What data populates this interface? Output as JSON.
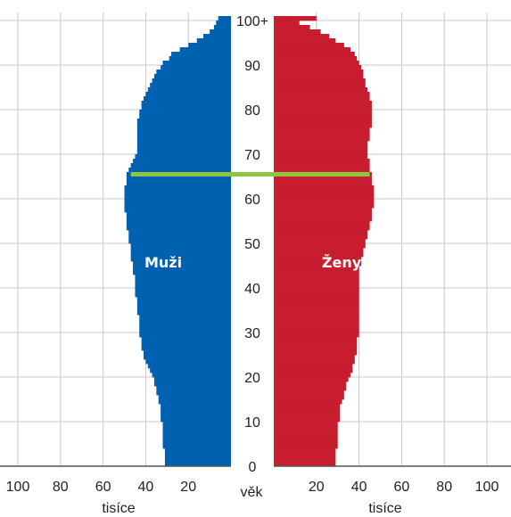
{
  "chart_data": {
    "type": "bar",
    "subtype": "population-pyramid",
    "title": "",
    "center_axis_label": "věk",
    "left_unit_label": "tisíce",
    "right_unit_label": "tisíce",
    "y_tick_labels": [
      "0",
      "10",
      "20",
      "30",
      "40",
      "50",
      "60",
      "70",
      "80",
      "90",
      "100+"
    ],
    "x_tick_labels": [
      "100",
      "80",
      "60",
      "40",
      "20"
    ],
    "xlim": [
      0,
      100
    ],
    "ylim": [
      0,
      100
    ],
    "grid": true,
    "marker_age": 65.5,
    "colors": {
      "men": "#0061b0",
      "women": "#c71d2e",
      "marker": "#8dc63f",
      "grid": "#c8c8c8",
      "axis": "#555555"
    },
    "series": [
      {
        "name": "Muži",
        "side": "left",
        "ages": [
          0,
          1,
          2,
          3,
          4,
          5,
          6,
          7,
          8,
          9,
          10,
          11,
          12,
          13,
          14,
          15,
          16,
          17,
          18,
          19,
          20,
          21,
          22,
          23,
          24,
          25,
          26,
          27,
          28,
          29,
          30,
          31,
          32,
          33,
          34,
          35,
          36,
          37,
          38,
          39,
          40,
          41,
          42,
          43,
          44,
          45,
          46,
          47,
          48,
          49,
          50,
          51,
          52,
          53,
          54,
          55,
          56,
          57,
          58,
          59,
          60,
          61,
          62,
          63,
          64,
          65,
          66,
          67,
          68,
          69,
          70,
          71,
          72,
          73,
          74,
          75,
          76,
          77,
          78,
          79,
          80,
          81,
          82,
          83,
          84,
          85,
          86,
          87,
          88,
          89,
          90,
          91,
          92,
          93,
          94,
          95,
          96,
          97,
          98,
          99,
          100
        ],
        "values": [
          31,
          31,
          31,
          31,
          32,
          32,
          32,
          32,
          32,
          32,
          33,
          33,
          33,
          33,
          34,
          34,
          35,
          35,
          36,
          36,
          37,
          38,
          39,
          40,
          41,
          41,
          42,
          42,
          42,
          43,
          43,
          43,
          43,
          43,
          44,
          44,
          44,
          44,
          45,
          45,
          45,
          45,
          45,
          46,
          46,
          46,
          47,
          47,
          47,
          47,
          48,
          48,
          48,
          49,
          49,
          49,
          49,
          50,
          50,
          50,
          50,
          50,
          50,
          49,
          49,
          49,
          48,
          47,
          46,
          45,
          44,
          44,
          44,
          44,
          44,
          44,
          44,
          44,
          43,
          43,
          42,
          42,
          41,
          40,
          39,
          38,
          37,
          36,
          35,
          33,
          32,
          29,
          28,
          24,
          20,
          16,
          13,
          10,
          8,
          7,
          6
        ]
      },
      {
        "name": "Ženy",
        "side": "right",
        "ages": [
          0,
          1,
          2,
          3,
          4,
          5,
          6,
          7,
          8,
          9,
          10,
          11,
          12,
          13,
          14,
          15,
          16,
          17,
          18,
          19,
          20,
          21,
          22,
          23,
          24,
          25,
          26,
          27,
          28,
          29,
          30,
          31,
          32,
          33,
          34,
          35,
          36,
          37,
          38,
          39,
          40,
          41,
          42,
          43,
          44,
          45,
          46,
          47,
          48,
          49,
          50,
          51,
          52,
          53,
          54,
          55,
          56,
          57,
          58,
          59,
          60,
          61,
          62,
          63,
          64,
          65,
          66,
          67,
          68,
          69,
          70,
          71,
          72,
          73,
          74,
          75,
          76,
          77,
          78,
          79,
          80,
          81,
          82,
          83,
          84,
          85,
          86,
          87,
          88,
          89,
          90,
          91,
          92,
          93,
          94,
          95,
          96,
          97,
          98,
          99,
          100
        ],
        "values": [
          29,
          29,
          29,
          29,
          30,
          30,
          30,
          30,
          30,
          30,
          31,
          31,
          31,
          31,
          32,
          33,
          33,
          34,
          34,
          35,
          36,
          37,
          37,
          38,
          38,
          39,
          39,
          39,
          39,
          40,
          40,
          40,
          40,
          40,
          40,
          40,
          40,
          40,
          40,
          40,
          40,
          40,
          40,
          40,
          40,
          41,
          41,
          42,
          42,
          43,
          43,
          44,
          44,
          45,
          45,
          46,
          46,
          46,
          47,
          47,
          47,
          47,
          47,
          46,
          46,
          46,
          45,
          45,
          45,
          44,
          44,
          44,
          44,
          45,
          45,
          45,
          46,
          46,
          46,
          46,
          46,
          46,
          45,
          45,
          44,
          43,
          43,
          42,
          42,
          41,
          40,
          39,
          38,
          36,
          33,
          29,
          26,
          22,
          17,
          12,
          20
        ]
      }
    ]
  }
}
